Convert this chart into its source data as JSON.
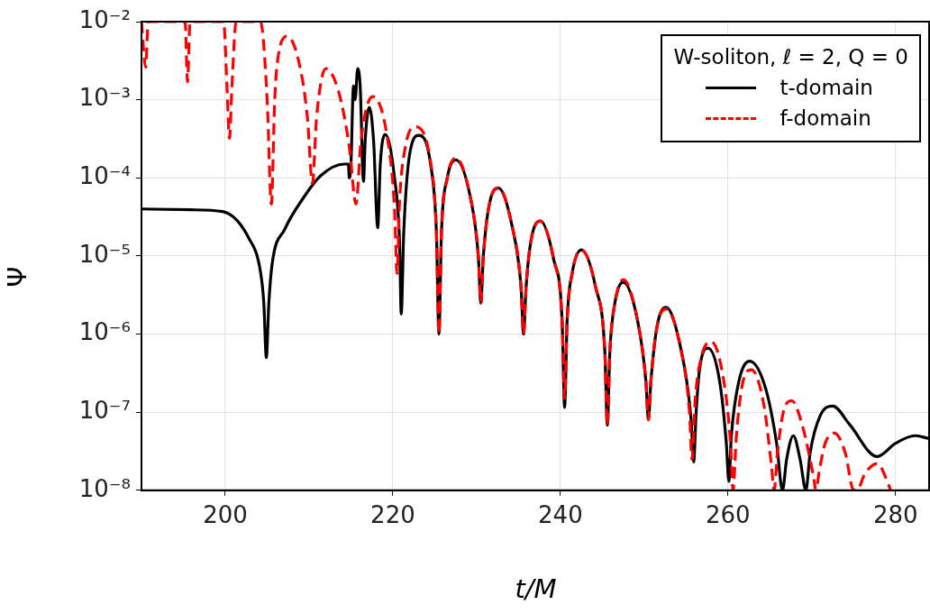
{
  "chart_data": {
    "type": "line",
    "xlabel": "t/M",
    "ylabel": "Ψ",
    "legend_title": "W-soliton, ℓ = 2, Q = 0",
    "xlim": [
      190,
      284
    ],
    "xticks": [
      200,
      220,
      240,
      260,
      280
    ],
    "ylim": [
      1e-08,
      0.01
    ],
    "yticks": [
      {
        "value": 1e-08,
        "label": "10⁻⁸"
      },
      {
        "value": 1e-07,
        "label": "10⁻⁷"
      },
      {
        "value": 1e-06,
        "label": "10⁻⁶"
      },
      {
        "value": 1e-05,
        "label": "10⁻⁵"
      },
      {
        "value": 0.0001,
        "label": "10⁻⁴"
      },
      {
        "value": 0.001,
        "label": "10⁻³"
      },
      {
        "value": 0.01,
        "label": "10⁻²"
      }
    ],
    "log": "y",
    "grid": true,
    "legend": "top right",
    "marker": "none",
    "series": [
      {
        "name": "t-domain",
        "color": "#000000",
        "line_style": "solid",
        "x": [
          190,
          196,
          199.7,
          202.8,
          204.2,
          204.6,
          204.9,
          205.2,
          205.6,
          207.1,
          209.3,
          211.4,
          214.2,
          214.7,
          214.8,
          215.0,
          215.3,
          215.5,
          215.8,
          216.1,
          216.5,
          216.7,
          217.2,
          217.7,
          218.2,
          218.5,
          219.1,
          220.2,
          220.8,
          221.0,
          221.3,
          222.0,
          223.1,
          224.5,
          225.2,
          225.5,
          225.8,
          226.5,
          227.5,
          229.2,
          230.2,
          230.5,
          230.8,
          231.5,
          232.6,
          234.2,
          235.3,
          235.6,
          235.9,
          236.5,
          237.6,
          239.2,
          240.2,
          240.5,
          240.8,
          241.4,
          242.5,
          244.2,
          245.3,
          245.6,
          245.9,
          246.5,
          247.5,
          249.2,
          250.2,
          250.5,
          250.8,
          251.5,
          252.6,
          254.3,
          255.6,
          255.9,
          256.2,
          256.6,
          257.6,
          259.0,
          259.8,
          260.1,
          260.4,
          261.3,
          262.6,
          264.5,
          265.8,
          266.5,
          267.0,
          267.8,
          268.6,
          269.3,
          269.8,
          271.0,
          272.5,
          274.5,
          277.8,
          280,
          282.3,
          284
        ],
        "values": [
          4e-05,
          3.9e-05,
          3.7e-05,
          1.7e-05,
          6.3e-06,
          2.5e-06,
          5e-07,
          2.5e-06,
          8e-06,
          2.2e-05,
          5.5e-05,
          0.000107,
          0.00015,
          0.00015,
          0.0001,
          0.00015,
          0.0015,
          0.001,
          0.0025,
          0.0015,
          9e-05,
          0.0003,
          0.0008,
          0.0003,
          2.3e-05,
          0.00015,
          0.00036,
          0.0001,
          1.5e-05,
          1.8e-06,
          2e-05,
          0.0002,
          0.00035,
          0.00015,
          2e-05,
          1e-06,
          2e-05,
          0.0001,
          0.00017,
          6e-05,
          1e-05,
          2.5e-06,
          1e-05,
          4.5e-05,
          7.4e-05,
          2.5e-05,
          4e-06,
          1e-06,
          4e-06,
          1.6e-05,
          2.8e-05,
          9e-06,
          1.5e-06,
          1.15e-07,
          1.5e-06,
          6e-06,
          1.2e-05,
          4e-06,
          6e-07,
          6.8e-08,
          6e-07,
          2.5e-06,
          4.6e-06,
          1.5e-06,
          2.5e-07,
          8e-08,
          2.5e-07,
          1.2e-06,
          2.2e-06,
          7e-07,
          8e-08,
          2.3e-08,
          1e-07,
          3.5e-07,
          6.6e-07,
          2.5e-07,
          4e-08,
          1.3e-08,
          5e-08,
          2.5e-07,
          4.5e-07,
          2e-07,
          4e-08,
          1e-08,
          2.5e-08,
          5e-08,
          2.5e-08,
          1e-08,
          3e-08,
          9e-08,
          1.2e-07,
          7e-08,
          2.7e-08,
          4e-08,
          5e-08,
          4.6e-08
        ]
      },
      {
        "name": "f-domain",
        "color": "#ff0000",
        "line_style": "dashed",
        "x": [
          190,
          190.5,
          190.8,
          195.2,
          195.5,
          195.8,
          199.8,
          200.2,
          200.5,
          200.8,
          201.3,
          204.2,
          205.0,
          205.5,
          205.9,
          206.3,
          207.4,
          208.8,
          209.8,
          210.4,
          210.9,
          212.0,
          213.5,
          214.8,
          215.6,
          216.2,
          217.6,
          219.3,
          220.2,
          220.5,
          220.8,
          221.5,
          222.6,
          224.5,
          225.2,
          225.5,
          225.8,
          226.5,
          227.5,
          229.2,
          230.2,
          230.5,
          230.8,
          231.5,
          232.6,
          234.2,
          235.3,
          235.6,
          235.9,
          236.5,
          237.6,
          239.2,
          240.2,
          240.5,
          240.8,
          241.4,
          242.5,
          244.2,
          245.3,
          245.6,
          245.9,
          246.5,
          247.5,
          249.2,
          250.2,
          250.5,
          250.8,
          251.5,
          252.6,
          254.3,
          255.4,
          255.7,
          256.1,
          256.8,
          258.0,
          259.5,
          260.3,
          260.6,
          261.0,
          261.8,
          262.8,
          264.3,
          265.2,
          265.5,
          265.9,
          266.6,
          267.6,
          269.0,
          270.2,
          270.5,
          270.9,
          271.6,
          272.7,
          274.0,
          275.0,
          275.4,
          276.3,
          277.8,
          278.9,
          279.4
        ],
        "values": [
          0.01,
          0.0026,
          0.01,
          0.01,
          0.0017,
          0.01,
          0.01,
          0.0015,
          0.00032,
          0.0015,
          0.01,
          0.01,
          0.001,
          4.6e-05,
          0.001,
          0.0035,
          0.0065,
          0.003,
          0.0006,
          8.5e-05,
          0.0006,
          0.0025,
          0.0013,
          0.00025,
          4.6e-05,
          0.0003,
          0.0011,
          0.00035,
          4e-05,
          6e-06,
          5e-05,
          0.00025,
          0.00045,
          0.00016,
          2e-05,
          1e-06,
          2e-05,
          0.0001,
          0.00018,
          6e-05,
          1e-05,
          2.5e-06,
          1e-05,
          4.5e-05,
          7.5e-05,
          2.5e-05,
          4e-06,
          1e-06,
          4e-06,
          1.6e-05,
          2.8e-05,
          9e-06,
          1.5e-06,
          1.5e-07,
          1.5e-06,
          6e-06,
          1.2e-05,
          4e-06,
          6e-07,
          6.8e-08,
          6e-07,
          2.5e-06,
          5e-06,
          1.5e-06,
          2.5e-07,
          8e-08,
          2.5e-07,
          1.2e-06,
          2.1e-06,
          7e-07,
          1e-07,
          2.5e-08,
          1.5e-07,
          5e-07,
          8e-07,
          2.5e-07,
          4e-08,
          1e-08,
          5e-08,
          2.5e-07,
          3.5e-07,
          1.2e-07,
          2e-08,
          1e-08,
          3e-08,
          1e-07,
          1.4e-07,
          6e-08,
          1.5e-08,
          1e-08,
          1.8e-08,
          4e-08,
          5.4e-08,
          3e-08,
          1e-08,
          1e-08,
          1.6e-08,
          2.2e-08,
          1.4e-08,
          1e-08
        ]
      }
    ]
  }
}
